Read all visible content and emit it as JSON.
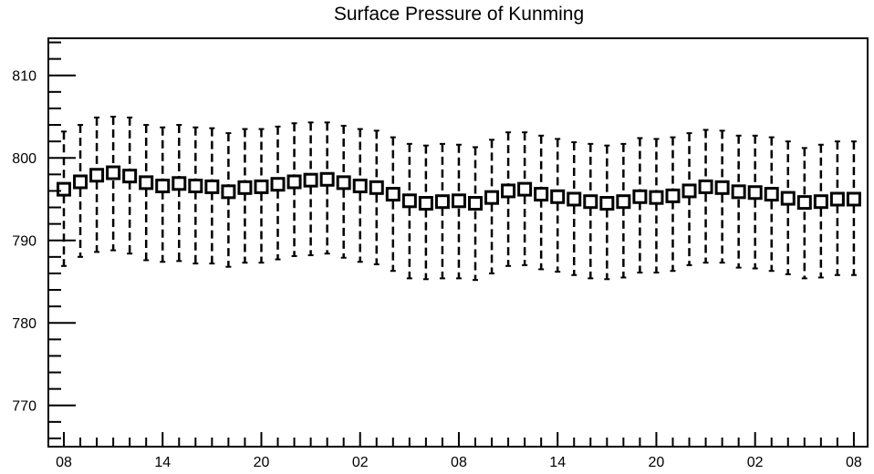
{
  "chart_data": {
    "type": "boxplot",
    "title": "Surface Pressure of Kunming",
    "xlabel": "",
    "ylabel": "",
    "x_tick_labels": [
      "08",
      "14",
      "20",
      "02",
      "08",
      "14",
      "20",
      "02",
      "08"
    ],
    "x_tick_every": 6,
    "y_ticks": [
      770,
      780,
      790,
      800,
      810
    ],
    "ylim": [
      765,
      814.5
    ],
    "grid": false,
    "legend": "none",
    "line_color": "#000000",
    "box_fill": "#ffffff",
    "series": [
      {
        "median": [
          796.2,
          797.1,
          797.9,
          798.2,
          797.8,
          797.0,
          796.6,
          796.9,
          796.6,
          796.5,
          795.9,
          796.4,
          796.5,
          796.8,
          797.1,
          797.3,
          797.4,
          797.0,
          796.6,
          796.4,
          795.6,
          794.8,
          794.5,
          794.7,
          794.8,
          794.5,
          795.2,
          796.0,
          796.2,
          795.6,
          795.3,
          795.0,
          794.7,
          794.5,
          794.7,
          795.3,
          795.2,
          795.4,
          796.0,
          796.5,
          796.4,
          795.9,
          795.8,
          795.6,
          795.1,
          794.6,
          794.7,
          795.0,
          795.0
        ],
        "low": [
          786.9,
          788.0,
          788.6,
          788.8,
          788.4,
          787.6,
          787.4,
          787.5,
          787.2,
          787.2,
          786.8,
          787.3,
          787.3,
          787.7,
          788.1,
          788.2,
          788.4,
          787.9,
          787.4,
          787.1,
          786.3,
          785.4,
          785.3,
          785.4,
          785.4,
          785.2,
          786.0,
          786.9,
          787.0,
          786.5,
          786.2,
          785.8,
          785.4,
          785.3,
          785.5,
          786.1,
          786.1,
          786.3,
          787.0,
          787.3,
          787.3,
          786.7,
          786.6,
          786.3,
          785.9,
          785.4,
          785.5,
          785.8,
          785.8
        ],
        "high": [
          803.2,
          804.0,
          804.9,
          805.0,
          804.9,
          804.0,
          803.7,
          804.0,
          803.7,
          803.6,
          803.0,
          803.5,
          803.5,
          803.8,
          804.2,
          804.3,
          804.3,
          803.9,
          803.5,
          803.3,
          802.5,
          801.7,
          801.5,
          801.7,
          801.6,
          801.3,
          802.2,
          803.1,
          803.1,
          802.7,
          802.3,
          801.9,
          801.7,
          801.5,
          801.7,
          802.4,
          802.3,
          802.5,
          803.0,
          803.4,
          803.3,
          802.7,
          802.7,
          802.5,
          802.0,
          801.2,
          801.6,
          802.0,
          802.0
        ]
      }
    ]
  }
}
